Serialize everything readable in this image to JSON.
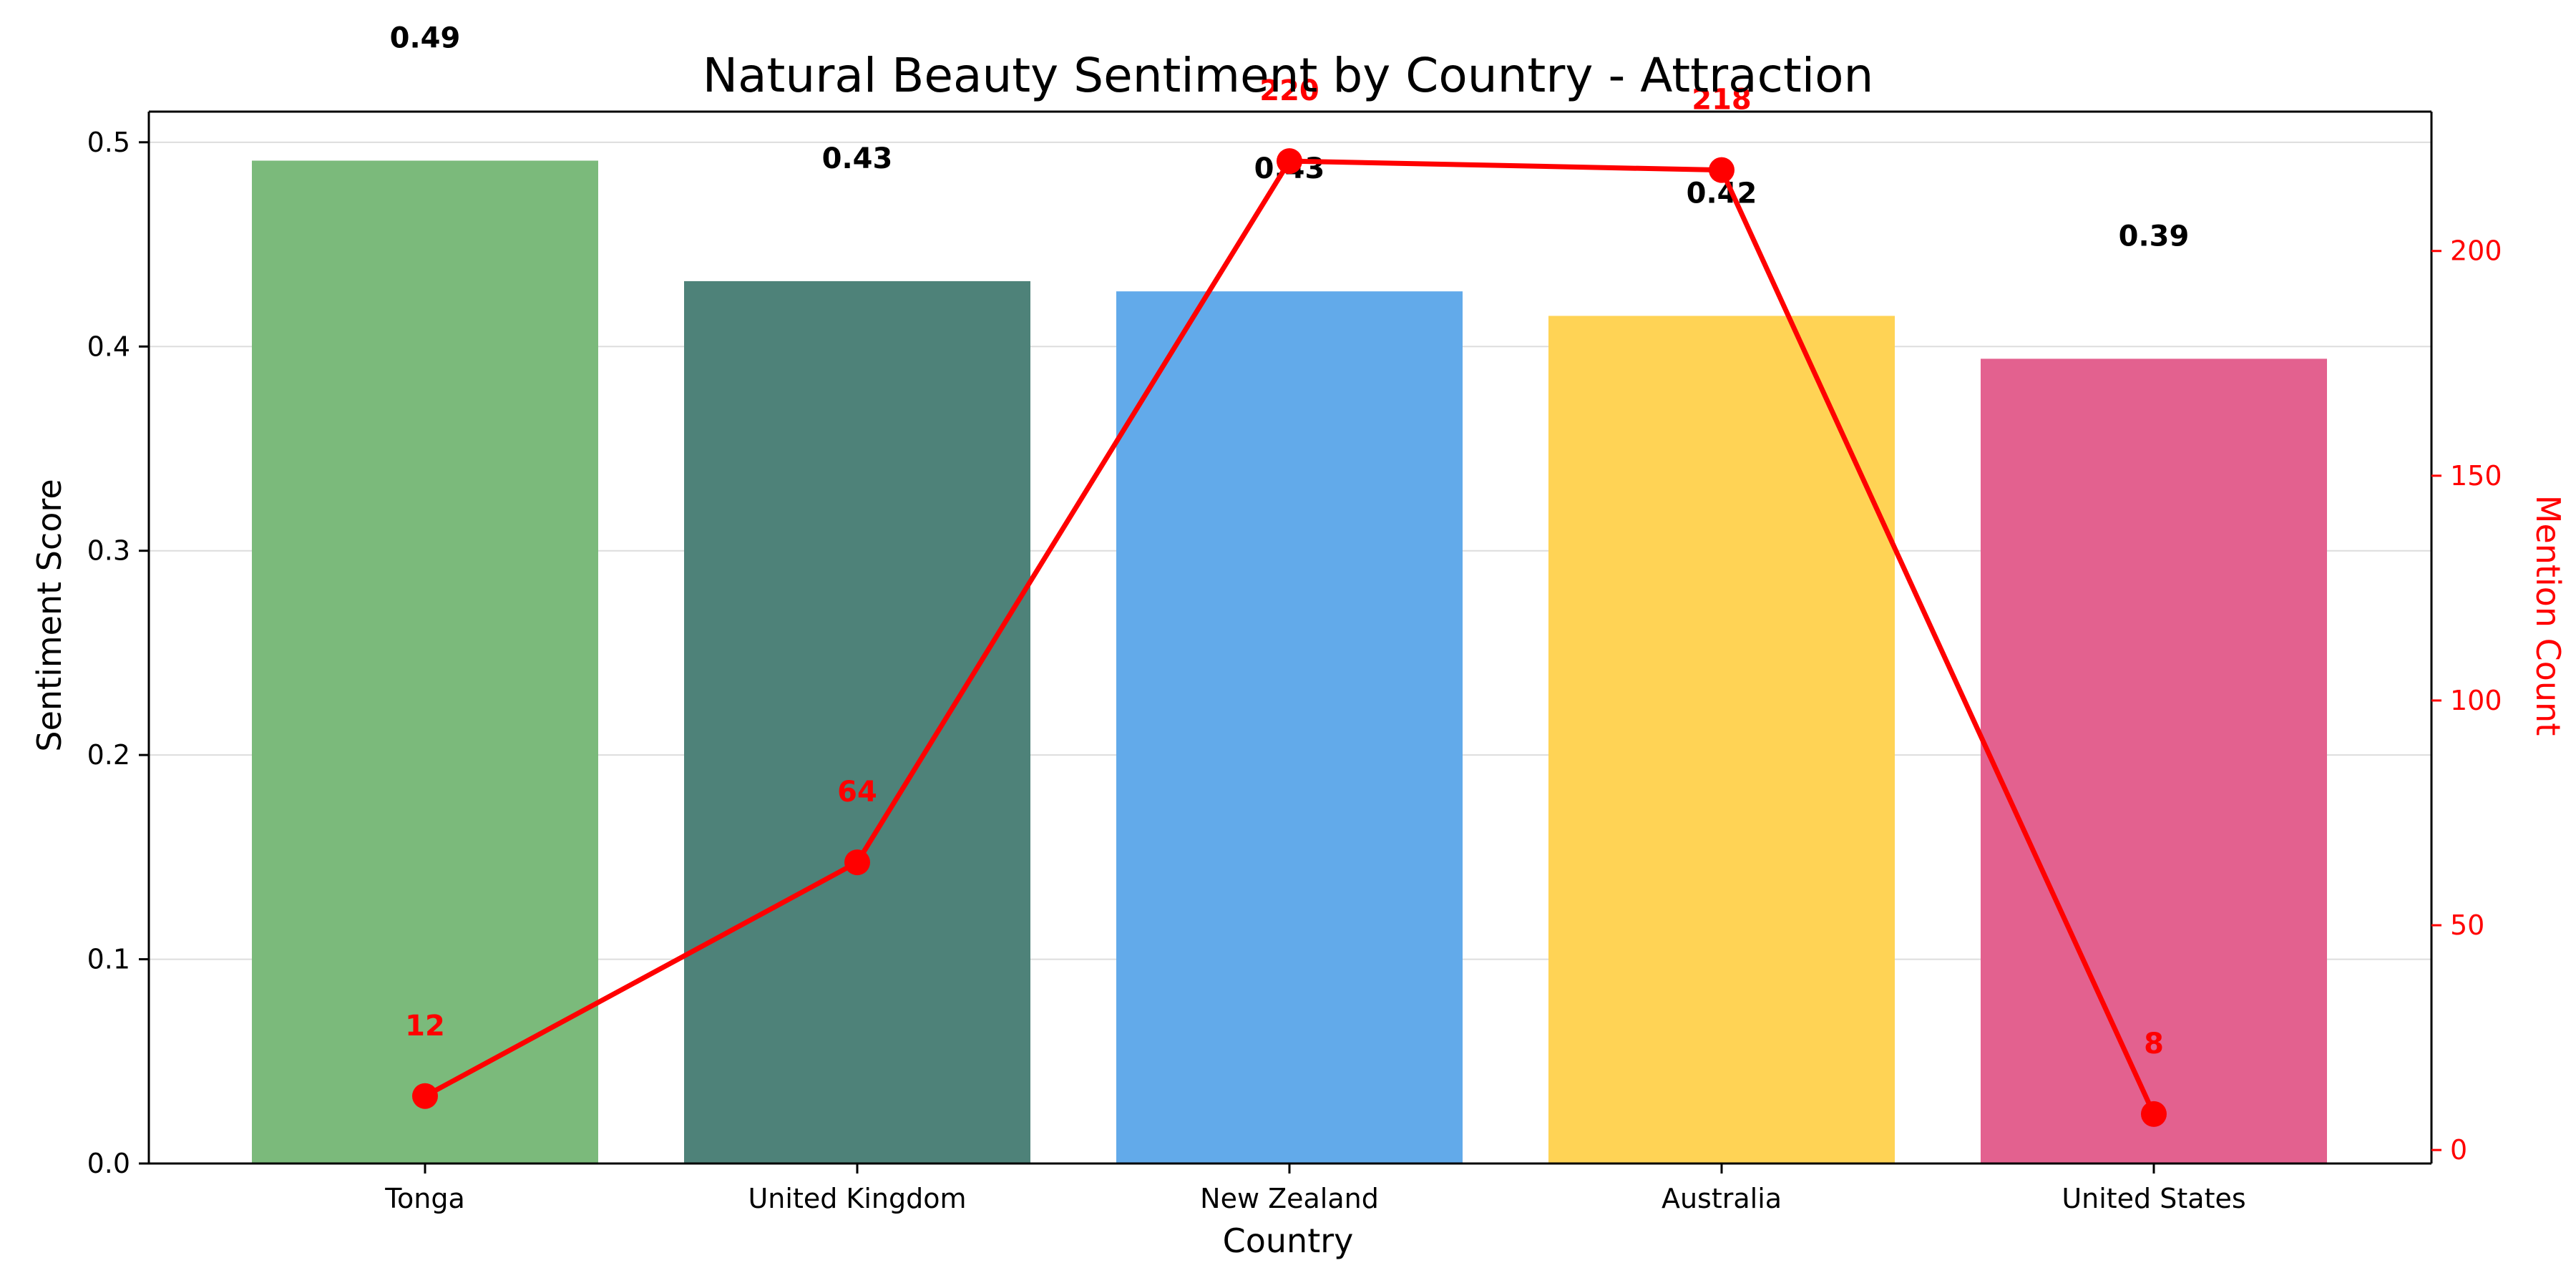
{
  "chart_data": {
    "type": "bar",
    "title": "Natural Beauty Sentiment by Country - Attraction",
    "xlabel": "Country",
    "ylabel": "Sentiment Score",
    "y2label": "Mention Count",
    "categories": [
      "Tonga",
      "United Kingdom",
      "New Zealand",
      "Australia",
      "United States"
    ],
    "series": [
      {
        "type": "bar",
        "axis": "left",
        "values": [
          0.491,
          0.432,
          0.427,
          0.415,
          0.394
        ],
        "labels": [
          "0.49",
          "0.43",
          "0.43",
          "0.42",
          "0.39"
        ],
        "colors": [
          "#7BBA7B",
          "#4E8279",
          "#62AAEA",
          "#FFD355",
          "#E3618F"
        ]
      },
      {
        "type": "line",
        "axis": "right",
        "values": [
          12,
          64,
          220,
          218,
          8
        ],
        "labels": [
          "12",
          "64",
          "220",
          "218",
          "8"
        ],
        "color": "#ff0000"
      }
    ],
    "ylim": [
      0,
      0.515
    ],
    "y2lim": [
      -3,
      231
    ],
    "yticks": [
      0.0,
      0.1,
      0.2,
      0.3,
      0.4,
      0.5
    ],
    "ytick_labels": [
      "0.0",
      "0.1",
      "0.2",
      "0.3",
      "0.4",
      "0.5"
    ],
    "y2ticks": [
      0,
      50,
      100,
      150,
      200
    ],
    "y2tick_labels": [
      "0",
      "50",
      "100",
      "150",
      "200"
    ],
    "grid": true,
    "legend": "none"
  }
}
